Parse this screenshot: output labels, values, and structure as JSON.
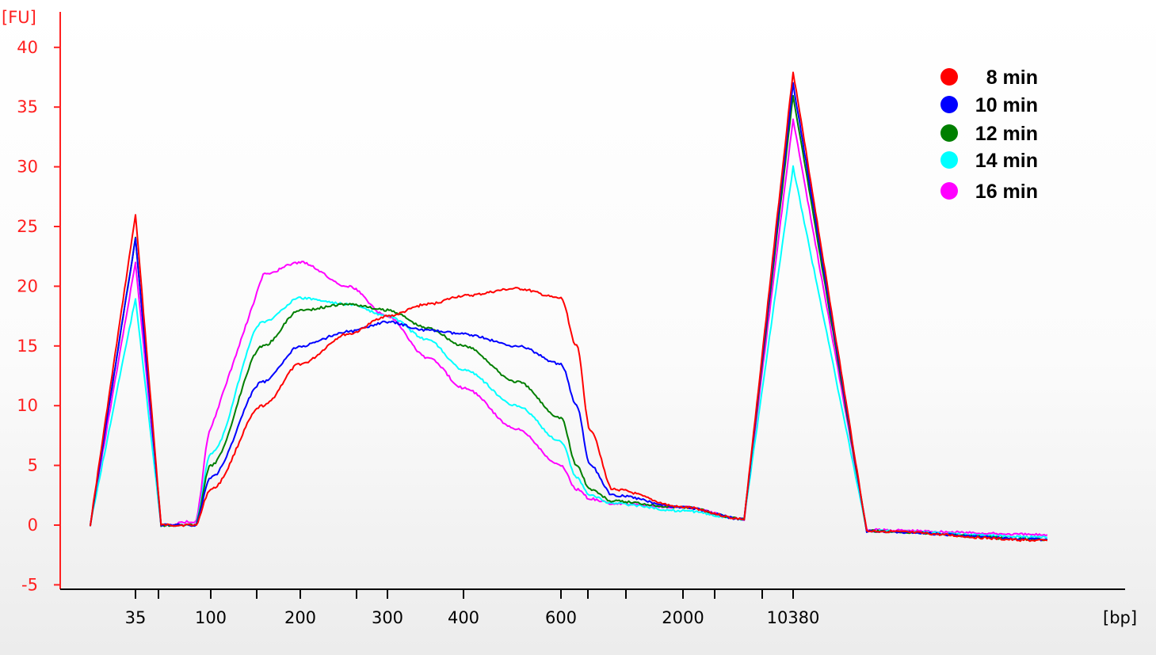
{
  "chart_data": {
    "type": "line",
    "y_unit": "[FU]",
    "x_unit": "[bp]",
    "ylim": [
      -5,
      42
    ],
    "y_ticks": [
      -5,
      0,
      5,
      10,
      15,
      20,
      25,
      30,
      35,
      40
    ],
    "x_tick_labels": [
      "35",
      "100",
      "200",
      "300",
      "400",
      "600",
      "2000",
      "10380"
    ],
    "legend_position": "top-right",
    "series": [
      {
        "name": "8 min",
        "color": "#ff0000",
        "values": [
          [
            25,
            0
          ],
          [
            35,
            26
          ],
          [
            50,
            0
          ],
          [
            80,
            0
          ],
          [
            100,
            3
          ],
          [
            150,
            10
          ],
          [
            200,
            13.5
          ],
          [
            250,
            16
          ],
          [
            300,
            17.5
          ],
          [
            350,
            18.5
          ],
          [
            400,
            19.2
          ],
          [
            500,
            19.8
          ],
          [
            600,
            19
          ],
          [
            700,
            15
          ],
          [
            800,
            8
          ],
          [
            1000,
            3
          ],
          [
            2000,
            1.5
          ],
          [
            5000,
            0.5
          ],
          [
            10380,
            38
          ],
          [
            20000,
            -0.5
          ],
          [
            100000,
            -1.3
          ]
        ]
      },
      {
        "name": "10 min",
        "color": "#0000ff",
        "values": [
          [
            25,
            0
          ],
          [
            35,
            24
          ],
          [
            50,
            0
          ],
          [
            80,
            0
          ],
          [
            100,
            4
          ],
          [
            150,
            12
          ],
          [
            200,
            15
          ],
          [
            250,
            16.2
          ],
          [
            300,
            17
          ],
          [
            350,
            16.3
          ],
          [
            400,
            16
          ],
          [
            500,
            15
          ],
          [
            600,
            13.5
          ],
          [
            700,
            10
          ],
          [
            800,
            5
          ],
          [
            1000,
            2.5
          ],
          [
            2000,
            1.5
          ],
          [
            5000,
            0.5
          ],
          [
            10380,
            37
          ],
          [
            20000,
            -0.5
          ],
          [
            100000,
            -1.2
          ]
        ]
      },
      {
        "name": "12 min",
        "color": "#007f00",
        "values": [
          [
            25,
            0
          ],
          [
            35,
            24
          ],
          [
            50,
            0
          ],
          [
            80,
            0
          ],
          [
            100,
            5
          ],
          [
            150,
            15
          ],
          [
            200,
            18
          ],
          [
            250,
            18.5
          ],
          [
            300,
            18
          ],
          [
            350,
            16.5
          ],
          [
            400,
            15
          ],
          [
            500,
            12
          ],
          [
            600,
            9
          ],
          [
            700,
            5
          ],
          [
            800,
            3
          ],
          [
            1000,
            2
          ],
          [
            2000,
            1.5
          ],
          [
            5000,
            0.5
          ],
          [
            10380,
            36
          ],
          [
            20000,
            -0.5
          ],
          [
            100000,
            -1.2
          ]
        ]
      },
      {
        "name": "14 min",
        "color": "#00ffff",
        "values": [
          [
            25,
            0
          ],
          [
            35,
            19
          ],
          [
            50,
            0
          ],
          [
            80,
            0
          ],
          [
            100,
            6
          ],
          [
            150,
            17
          ],
          [
            200,
            19
          ],
          [
            250,
            18.5
          ],
          [
            300,
            17.5
          ],
          [
            350,
            15.5
          ],
          [
            400,
            13
          ],
          [
            500,
            10
          ],
          [
            600,
            7
          ],
          [
            700,
            4
          ],
          [
            800,
            2.5
          ],
          [
            1000,
            1.8
          ],
          [
            2000,
            1.2
          ],
          [
            5000,
            0.5
          ],
          [
            10380,
            30
          ],
          [
            20000,
            -0.5
          ],
          [
            100000,
            -1
          ]
        ]
      },
      {
        "name": "16 min",
        "color": "#ff00ff",
        "values": [
          [
            25,
            0
          ],
          [
            35,
            22
          ],
          [
            50,
            0
          ],
          [
            80,
            0.3
          ],
          [
            100,
            8
          ],
          [
            150,
            21
          ],
          [
            200,
            22
          ],
          [
            250,
            20
          ],
          [
            300,
            17.5
          ],
          [
            350,
            14
          ],
          [
            400,
            11.5
          ],
          [
            500,
            8
          ],
          [
            600,
            5
          ],
          [
            700,
            3
          ],
          [
            800,
            2.2
          ],
          [
            1000,
            1.8
          ],
          [
            2000,
            1.5
          ],
          [
            5000,
            0.5
          ],
          [
            10380,
            34
          ],
          [
            20000,
            -0.4
          ],
          [
            100000,
            -0.8
          ]
        ]
      }
    ]
  }
}
